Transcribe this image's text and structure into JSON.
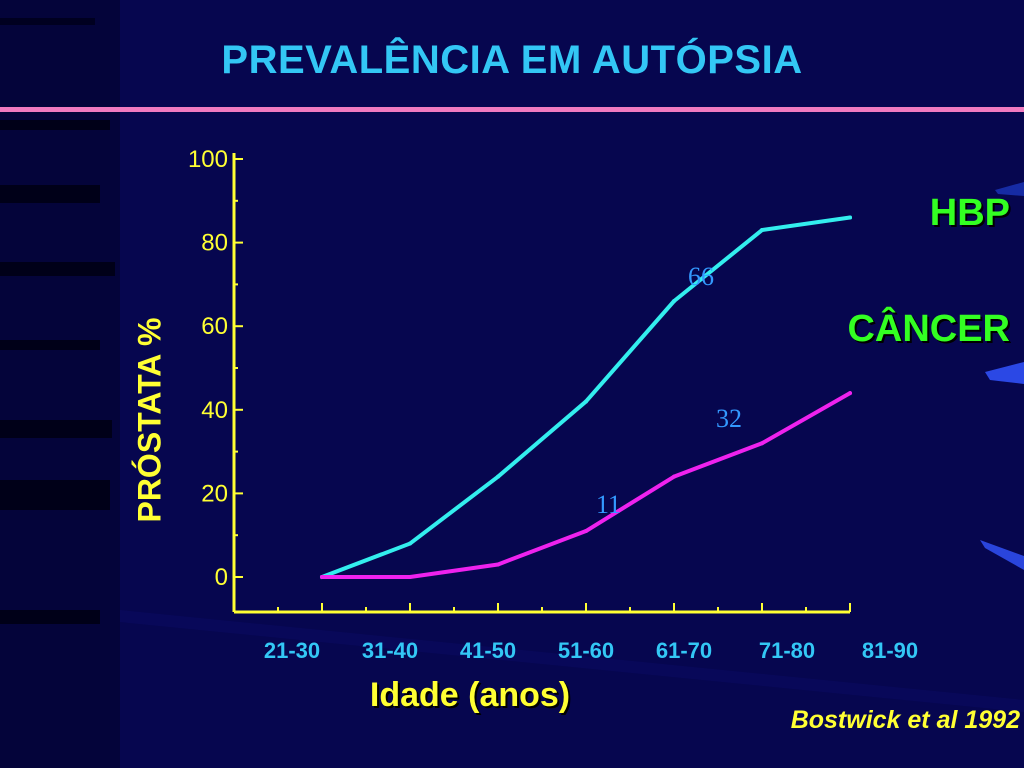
{
  "slide": {
    "title": "PREVALÊNCIA EM AUTÓPSIA",
    "source": "Bostwick et al 1992"
  },
  "colors": {
    "background": "#06064f",
    "title": "#33c7f5",
    "rule": "#f07ac0",
    "axis": "#ffff33",
    "hbp_line": "#33eeee",
    "cancer_line": "#ee22ee",
    "legend_text": "#33ff22",
    "data_label": "#3399ff"
  },
  "chart_data": {
    "type": "line",
    "title": "PREVALÊNCIA EM AUTÓPSIA",
    "xlabel": "Idade (anos)",
    "ylabel": "PRÓSTATA %",
    "ylim": [
      0,
      100
    ],
    "ytick_labels": [
      "100",
      "80",
      "60",
      "40",
      "20",
      "0"
    ],
    "ytick_values": [
      100,
      80,
      60,
      40,
      20,
      0
    ],
    "categories": [
      "21-30",
      "31-40",
      "41-50",
      "51-60",
      "61-70",
      "71-80",
      "81-90"
    ],
    "grid": false,
    "legend_placement": "right",
    "series": [
      {
        "name": "HBP",
        "key": "hbp",
        "x": [
          0,
          1,
          2,
          3,
          4,
          5,
          6
        ],
        "values": [
          0,
          8,
          24,
          42,
          66,
          83,
          86
        ]
      },
      {
        "name": "CÂNCER",
        "key": "cancer",
        "x": [
          0,
          1,
          2,
          3,
          4,
          5,
          6
        ],
        "values": [
          0,
          0,
          3,
          11,
          24,
          32,
          44
        ]
      }
    ],
    "annotations": [
      {
        "text": "66",
        "x": 4,
        "y": 66,
        "series": "HBP"
      },
      {
        "text": "32",
        "x": 5,
        "y": 32,
        "series": "CÂNCER"
      },
      {
        "text": "11",
        "x": 3,
        "y": 11,
        "series": "CÂNCER"
      }
    ]
  }
}
